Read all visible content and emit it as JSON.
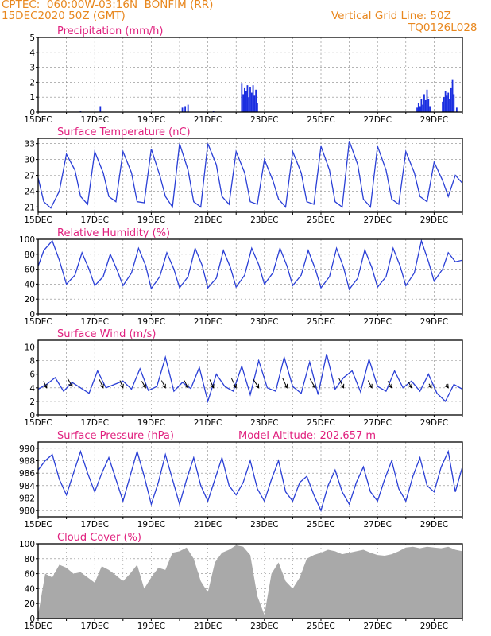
{
  "header": {
    "source_station": "CPTEC:  060:00W-03:16N  BONFIM (RR)",
    "run_time": "15DEC2020 50Z (GMT)",
    "grid_note": "Vertical Grid Line: 50Z",
    "model_code": "TQ0126L028"
  },
  "colors": {
    "header_text": "#e8871e",
    "panel_title": "#e0207e",
    "series_line": "#2a3fd6",
    "precip_bar": "#1a2ee0",
    "cloud_fill": "#a9a9a9",
    "wind_arrow": "#000000",
    "grid": "#888888"
  },
  "chart_data": [
    {
      "type": "bar",
      "title": "Precipitation (mm/h)",
      "ylim": [
        0,
        5
      ],
      "yticks": [
        "0",
        "1",
        "2",
        "3",
        "4",
        "5"
      ],
      "xlim": [
        0,
        15
      ],
      "xtick_labels": [
        "15DEC",
        "17DEC",
        "19DEC",
        "21DEC",
        "23DEC",
        "25DEC",
        "27DEC",
        "29DEC"
      ],
      "x_day_offsets": [
        0,
        2,
        4,
        6,
        8,
        10,
        12,
        14
      ],
      "grid": true,
      "bars": {
        "x": [
          1.5,
          2.2,
          5.1,
          5.2,
          5.3,
          6.2,
          7.2,
          7.25,
          7.3,
          7.35,
          7.4,
          7.45,
          7.5,
          7.55,
          7.6,
          7.65,
          7.7,
          7.75,
          13.4,
          13.45,
          13.5,
          13.55,
          13.6,
          13.65,
          13.7,
          13.75,
          13.8,
          13.85,
          14.3,
          14.35,
          14.4,
          14.45,
          14.5,
          14.55,
          14.6,
          14.65,
          14.7,
          14.8
        ],
        "values": [
          0.1,
          0.4,
          0.3,
          0.4,
          0.5,
          0.1,
          1.9,
          1.2,
          1.6,
          1.4,
          1.8,
          1.0,
          1.7,
          1.3,
          1.8,
          1.1,
          1.5,
          0.6,
          0.3,
          0.6,
          0.4,
          0.9,
          0.5,
          1.2,
          0.8,
          1.5,
          0.9,
          0.4,
          0.7,
          1.0,
          1.4,
          1.1,
          1.3,
          0.9,
          1.6,
          2.2,
          1.2,
          0.3
        ]
      }
    },
    {
      "type": "line",
      "title": "Surface Temperature (nC)",
      "ylim": [
        20,
        34
      ],
      "yticks": [
        "21",
        "24",
        "27",
        "30",
        "33"
      ],
      "ytick_values": [
        21,
        24,
        27,
        30,
        33
      ],
      "xlim": [
        0,
        15
      ],
      "xtick_labels": [
        "15DEC",
        "17DEC",
        "19DEC",
        "21DEC",
        "23DEC",
        "25DEC",
        "27DEC",
        "29DEC"
      ],
      "x_day_offsets": [
        0,
        2,
        4,
        6,
        8,
        10,
        12,
        14
      ],
      "grid": true,
      "series": [
        {
          "x": [
            0,
            0.2,
            0.45,
            0.75,
            1.0,
            1.3,
            1.5,
            1.75,
            2.0,
            2.3,
            2.5,
            2.75,
            3.0,
            3.3,
            3.5,
            3.75,
            4.0,
            4.3,
            4.5,
            4.75,
            5.0,
            5.3,
            5.5,
            5.75,
            6.0,
            6.3,
            6.5,
            6.75,
            7.0,
            7.3,
            7.5,
            7.75,
            8.0,
            8.3,
            8.5,
            8.75,
            9.0,
            9.3,
            9.5,
            9.75,
            10.0,
            10.3,
            10.5,
            10.75,
            11.0,
            11.3,
            11.5,
            11.75,
            12.0,
            12.3,
            12.5,
            12.75,
            13.0,
            13.3,
            13.5,
            13.75,
            14.0,
            14.3,
            14.5,
            14.75,
            15.0
          ],
          "values": [
            26.5,
            22.0,
            20.8,
            24.0,
            31.0,
            28.0,
            23.0,
            21.5,
            31.5,
            27.5,
            23.0,
            22.0,
            31.5,
            27.5,
            22.0,
            21.8,
            32.0,
            27.0,
            23.0,
            21.0,
            33.0,
            28.0,
            22.0,
            21.0,
            33.0,
            29.0,
            23.0,
            21.5,
            31.5,
            27.5,
            22.0,
            21.5,
            30.0,
            26.0,
            22.5,
            21.0,
            31.5,
            27.5,
            22.0,
            21.5,
            32.5,
            28.0,
            22.0,
            21.0,
            33.5,
            29.0,
            22.5,
            21.0,
            32.5,
            28.0,
            22.5,
            21.5,
            31.5,
            27.5,
            23.0,
            22.0,
            29.5,
            26.0,
            23.0,
            27.0,
            25.5
          ]
        }
      ]
    },
    {
      "type": "line",
      "title": "Relative Humidity (%)",
      "ylim": [
        0,
        100
      ],
      "yticks": [
        "0",
        "20",
        "40",
        "60",
        "80",
        "100"
      ],
      "ytick_values": [
        0,
        20,
        40,
        60,
        80,
        100
      ],
      "xlim": [
        0,
        15
      ],
      "xtick_labels": [
        "15DEC",
        "17DEC",
        "19DEC",
        "21DEC",
        "23DEC",
        "25DEC",
        "27DEC",
        "29DEC"
      ],
      "x_day_offsets": [
        0,
        2,
        4,
        6,
        8,
        10,
        12,
        14
      ],
      "grid": true,
      "series": [
        {
          "x": [
            0,
            0.2,
            0.5,
            0.75,
            1.0,
            1.3,
            1.55,
            1.8,
            2.0,
            2.3,
            2.55,
            2.8,
            3.0,
            3.3,
            3.55,
            3.8,
            4.0,
            4.3,
            4.55,
            4.8,
            5.0,
            5.3,
            5.55,
            5.8,
            6.0,
            6.3,
            6.55,
            6.8,
            7.0,
            7.3,
            7.55,
            7.8,
            8.0,
            8.3,
            8.55,
            8.8,
            9.0,
            9.3,
            9.55,
            9.8,
            10.0,
            10.3,
            10.55,
            10.8,
            11.0,
            11.3,
            11.55,
            11.8,
            12.0,
            12.3,
            12.55,
            12.8,
            13.0,
            13.3,
            13.55,
            13.8,
            14.0,
            14.3,
            14.5,
            14.75,
            15.0
          ],
          "values": [
            64,
            85,
            98,
            72,
            40,
            52,
            82,
            60,
            38,
            50,
            80,
            58,
            38,
            55,
            88,
            65,
            34,
            50,
            82,
            60,
            35,
            50,
            88,
            65,
            35,
            48,
            85,
            62,
            36,
            52,
            88,
            66,
            40,
            55,
            88,
            64,
            38,
            52,
            85,
            60,
            35,
            50,
            88,
            62,
            33,
            48,
            86,
            62,
            36,
            50,
            88,
            64,
            38,
            55,
            98,
            70,
            44,
            60,
            82,
            70,
            72
          ]
        }
      ]
    },
    {
      "type": "line",
      "title": "Surface Wind (m/s)",
      "ylim": [
        0,
        11
      ],
      "yticks": [
        "0",
        "2",
        "4",
        "6",
        "8",
        "10"
      ],
      "ytick_values": [
        0,
        2,
        4,
        6,
        8,
        10
      ],
      "xlim": [
        0,
        15
      ],
      "xtick_labels": [
        "15DEC",
        "17DEC",
        "19DEC",
        "21DEC",
        "23DEC",
        "25DEC",
        "27DEC",
        "29DEC"
      ],
      "x_day_offsets": [
        0,
        2,
        4,
        6,
        8,
        10,
        12,
        14
      ],
      "grid": true,
      "series": [
        {
          "x": [
            0,
            0.3,
            0.6,
            0.9,
            1.2,
            1.5,
            1.8,
            2.1,
            2.4,
            2.7,
            3.0,
            3.3,
            3.6,
            3.9,
            4.2,
            4.5,
            4.8,
            5.1,
            5.4,
            5.7,
            6.0,
            6.3,
            6.6,
            6.9,
            7.2,
            7.5,
            7.8,
            8.1,
            8.4,
            8.7,
            9.0,
            9.3,
            9.6,
            9.9,
            10.2,
            10.5,
            10.8,
            11.1,
            11.4,
            11.7,
            12.0,
            12.3,
            12.6,
            12.9,
            13.2,
            13.5,
            13.8,
            14.1,
            14.4,
            14.7,
            15.0
          ],
          "values": [
            3.8,
            4.5,
            5.5,
            3.5,
            4.8,
            4.0,
            3.2,
            6.5,
            4.0,
            4.5,
            5.0,
            3.8,
            6.8,
            3.6,
            4.2,
            8.5,
            3.5,
            4.8,
            3.9,
            7.0,
            2.0,
            6.0,
            4.2,
            3.5,
            7.2,
            3.0,
            8.0,
            4.0,
            3.5,
            8.5,
            4.2,
            3.2,
            7.8,
            3.0,
            9.0,
            3.8,
            5.5,
            6.5,
            3.4,
            8.2,
            4.2,
            3.5,
            6.5,
            4.0,
            5.0,
            3.5,
            6.0,
            3.2,
            2.0,
            4.5,
            3.8
          ]
        }
      ],
      "wind_vectors": {
        "x": [
          0.3,
          1.2,
          2.3,
          3.0,
          3.8,
          4.5,
          5.3,
          6.2,
          7.0,
          7.8,
          8.8,
          9.8,
          10.8,
          11.8,
          12.5,
          13.2,
          13.9,
          14.5
        ],
        "level": [
          4.0,
          4.2,
          4.0,
          4.0,
          4.0,
          4.0,
          4.0,
          4.0,
          4.0,
          4.0,
          4.0,
          4.0,
          4.0,
          4.0,
          4.0,
          4.0,
          4.0,
          4.0
        ],
        "u": [
          -0.4,
          -0.6,
          -0.5,
          -0.4,
          -0.5,
          -0.5,
          -0.5,
          -0.5,
          -0.6,
          -0.7,
          -0.6,
          -0.7,
          -0.6,
          -0.5,
          -0.5,
          -0.4,
          -0.3,
          -0.3
        ],
        "v": [
          2.0,
          2.5,
          2.5,
          2.2,
          2.0,
          2.2,
          2.2,
          2.5,
          2.8,
          2.5,
          3.0,
          2.7,
          2.8,
          2.2,
          2.0,
          1.8,
          1.2,
          1.0
        ]
      }
    },
    {
      "type": "line",
      "title": "Surface Pressure (hPa)",
      "annotation": "Model Altitude: 202.657 m",
      "ylim": [
        979,
        991
      ],
      "yticks": [
        "980",
        "982",
        "984",
        "986",
        "988",
        "990"
      ],
      "ytick_values": [
        980,
        982,
        984,
        986,
        988,
        990
      ],
      "xlim": [
        0,
        15
      ],
      "xtick_labels": [
        "15DEC",
        "17DEC",
        "19DEC",
        "21DEC",
        "23DEC",
        "25DEC",
        "27DEC",
        "29DEC"
      ],
      "x_day_offsets": [
        0,
        2,
        4,
        6,
        8,
        10,
        12,
        14
      ],
      "grid": true,
      "series": [
        {
          "x": [
            0,
            0.25,
            0.5,
            0.75,
            1.0,
            1.25,
            1.5,
            1.75,
            2.0,
            2.25,
            2.5,
            2.75,
            3.0,
            3.25,
            3.5,
            3.75,
            4.0,
            4.25,
            4.5,
            4.75,
            5.0,
            5.25,
            5.5,
            5.75,
            6.0,
            6.25,
            6.5,
            6.75,
            7.0,
            7.25,
            7.5,
            7.75,
            8.0,
            8.25,
            8.5,
            8.75,
            9.0,
            9.25,
            9.5,
            9.75,
            10.0,
            10.25,
            10.5,
            10.75,
            11.0,
            11.25,
            11.5,
            11.75,
            12.0,
            12.25,
            12.5,
            12.75,
            13.0,
            13.25,
            13.5,
            13.75,
            14.0,
            14.25,
            14.5,
            14.75,
            15.0
          ],
          "values": [
            986.5,
            988.0,
            989.0,
            985.0,
            982.5,
            986.0,
            989.5,
            986.0,
            983.0,
            986.0,
            988.5,
            985.0,
            981.5,
            985.5,
            989.5,
            985.5,
            981.0,
            984.5,
            989.0,
            985.0,
            981.0,
            985.0,
            988.5,
            984.0,
            981.5,
            985.0,
            988.5,
            984.0,
            982.5,
            984.5,
            988.0,
            983.5,
            981.5,
            985.0,
            988.0,
            983.0,
            981.5,
            984.5,
            985.5,
            982.5,
            980.0,
            984.0,
            986.5,
            983.0,
            981.0,
            984.5,
            987.0,
            983.0,
            981.5,
            985.0,
            988.0,
            983.5,
            981.5,
            985.5,
            988.5,
            984.0,
            983.0,
            987.0,
            989.5,
            983.0,
            987.0
          ]
        }
      ]
    },
    {
      "type": "area",
      "title": "Cloud Cover (%)",
      "ylim": [
        0,
        100
      ],
      "yticks": [
        "0",
        "20",
        "40",
        "60",
        "80",
        "100"
      ],
      "ytick_values": [
        0,
        20,
        40,
        60,
        80,
        100
      ],
      "xlim": [
        0,
        15
      ],
      "xtick_labels": [
        "15DEC",
        "17DEC",
        "19DEC",
        "21DEC",
        "23DEC",
        "25DEC",
        "27DEC",
        "29DEC"
      ],
      "x_day_offsets": [
        0,
        2,
        4,
        6,
        8,
        10,
        12,
        14
      ],
      "grid": true,
      "series": [
        {
          "x": [
            0,
            0.25,
            0.5,
            0.75,
            1.0,
            1.25,
            1.5,
            1.75,
            2.0,
            2.25,
            2.5,
            2.75,
            3.0,
            3.25,
            3.5,
            3.75,
            4.0,
            4.25,
            4.5,
            4.75,
            5.0,
            5.25,
            5.5,
            5.75,
            6.0,
            6.25,
            6.5,
            6.75,
            7.0,
            7.25,
            7.5,
            7.75,
            8.0,
            8.25,
            8.5,
            8.75,
            9.0,
            9.25,
            9.5,
            9.75,
            10.0,
            10.25,
            10.5,
            10.75,
            11.0,
            11.25,
            11.5,
            11.75,
            12.0,
            12.25,
            12.5,
            12.75,
            13.0,
            13.25,
            13.5,
            13.75,
            14.0,
            14.25,
            14.5,
            14.75,
            15.0
          ],
          "values": [
            5,
            60,
            55,
            72,
            68,
            60,
            62,
            55,
            48,
            70,
            65,
            58,
            50,
            60,
            72,
            40,
            55,
            68,
            65,
            88,
            90,
            95,
            80,
            50,
            35,
            75,
            88,
            92,
            98,
            96,
            85,
            30,
            5,
            60,
            75,
            50,
            40,
            55,
            80,
            85,
            88,
            92,
            90,
            86,
            88,
            90,
            92,
            88,
            85,
            84,
            86,
            90,
            95,
            96,
            94,
            96,
            95,
            94,
            96,
            92,
            90
          ]
        }
      ]
    }
  ]
}
